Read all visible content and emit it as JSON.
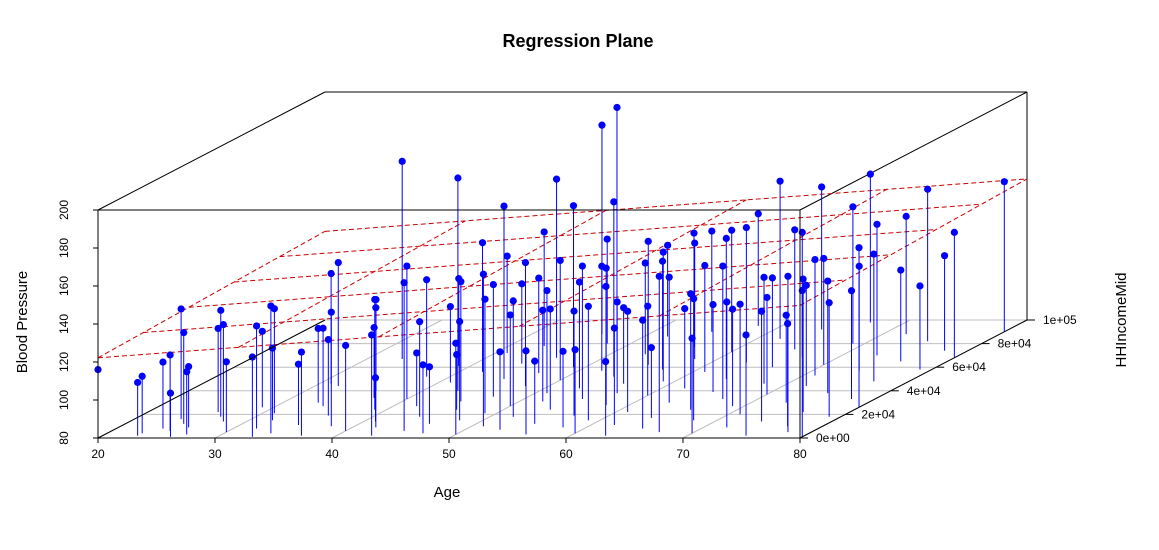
{
  "chart_data": {
    "type": "scatter",
    "variant": "3d-scatter-with-drop-lines-and-regression-plane",
    "title": "Regression Plane",
    "xlabel": "Age",
    "ylabel": "HHIncomeMid",
    "zlabel": "Blood Pressure",
    "xlim": [
      20,
      80
    ],
    "ylim": [
      0,
      100000
    ],
    "zlim": [
      80,
      200
    ],
    "x_ticks": [
      "20",
      "30",
      "40",
      "50",
      "60",
      "70",
      "80"
    ],
    "y_ticks": [
      "0e+00",
      "2e+04",
      "4e+04",
      "6e+04",
      "8e+04",
      "1e+05"
    ],
    "z_ticks": [
      "80",
      "100",
      "120",
      "140",
      "160",
      "180",
      "200"
    ],
    "x_tick_values": [
      20,
      30,
      40,
      50,
      60,
      70,
      80
    ],
    "y_tick_values": [
      0,
      20000,
      40000,
      60000,
      80000,
      100000
    ],
    "z_tick_values": [
      80,
      100,
      120,
      140,
      160,
      180,
      200
    ],
    "grid": "floor",
    "point_color": "#0000FF",
    "plane_color": "#CC0000",
    "box_color": "#000000",
    "grid_color": "#BEBEBE",
    "regression_plane": {
      "intercept": 113,
      "age_coef": 0.46,
      "income_coef": 4.45e-05
    },
    "points": [
      [
        20,
        0,
        116
      ],
      [
        23,
        2000,
        108
      ],
      [
        23,
        4000,
        110
      ],
      [
        24,
        8000,
        115
      ],
      [
        24,
        16000,
        138
      ],
      [
        25,
        6000,
        120
      ],
      [
        25,
        12000,
        128
      ],
      [
        26,
        1000,
        103
      ],
      [
        26,
        9000,
        112
      ],
      [
        26,
        22000,
        124
      ],
      [
        27,
        3000,
        113
      ],
      [
        27,
        18000,
        136
      ],
      [
        28,
        14000,
        131
      ],
      [
        29,
        26000,
        120
      ],
      [
        30,
        5000,
        117
      ],
      [
        31,
        21000,
        135
      ],
      [
        31,
        46000,
        138
      ],
      [
        32,
        8000,
        134
      ],
      [
        32,
        15000,
        118
      ],
      [
        32,
        44000,
        145
      ],
      [
        33,
        1000,
        122
      ],
      [
        33,
        30000,
        119
      ],
      [
        33,
        67000,
        184
      ],
      [
        34,
        4000,
        147
      ],
      [
        34,
        27000,
        121
      ],
      [
        35,
        11000,
        112
      ],
      [
        36,
        19000,
        120
      ],
      [
        36,
        40000,
        128
      ],
      [
        37,
        2000,
        124
      ],
      [
        37,
        34000,
        117
      ],
      [
        38,
        10000,
        140
      ],
      [
        38,
        52000,
        131
      ],
      [
        39,
        24000,
        138
      ],
      [
        39,
        61000,
        126
      ],
      [
        40,
        6000,
        125
      ],
      [
        40,
        33000,
        150
      ],
      [
        41,
        14000,
        103
      ],
      [
        41,
        47000,
        120
      ],
      [
        41,
        72000,
        131
      ],
      [
        42,
        9000,
        143
      ],
      [
        42,
        27000,
        108
      ],
      [
        42,
        56000,
        148
      ],
      [
        43,
        2000,
        133
      ],
      [
        43,
        40000,
        192
      ],
      [
        43,
        78000,
        140
      ],
      [
        44,
        18000,
        130
      ],
      [
        44,
        63000,
        122
      ],
      [
        45,
        6000,
        158
      ],
      [
        45,
        31000,
        143
      ],
      [
        45,
        50000,
        171
      ],
      [
        46,
        12000,
        110
      ],
      [
        46,
        24000,
        109
      ],
      [
        46,
        68000,
        174
      ],
      [
        46,
        88000,
        190
      ],
      [
        47,
        4000,
        116
      ],
      [
        47,
        35000,
        139
      ],
      [
        47,
        55000,
        130
      ],
      [
        48,
        15000,
        132
      ],
      [
        48,
        44000,
        145
      ],
      [
        48,
        80000,
        135
      ],
      [
        49,
        21000,
        140
      ],
      [
        49,
        60000,
        165
      ],
      [
        50,
        3000,
        128
      ],
      [
        50,
        27000,
        128
      ],
      [
        50,
        49000,
        143
      ],
      [
        50,
        74000,
        208
      ],
      [
        51,
        10000,
        160
      ],
      [
        51,
        38000,
        134
      ],
      [
        51,
        64000,
        120
      ],
      [
        52,
        18000,
        141
      ],
      [
        52,
        31000,
        128
      ],
      [
        52,
        57000,
        135
      ],
      [
        52,
        86000,
        128
      ],
      [
        53,
        7000,
        121
      ],
      [
        53,
        42000,
        136
      ],
      [
        53,
        71000,
        128
      ],
      [
        54,
        24000,
        133
      ],
      [
        54,
        52000,
        172
      ],
      [
        55,
        12000,
        113
      ],
      [
        55,
        33000,
        150
      ],
      [
        55,
        62000,
        145
      ],
      [
        55,
        90000,
        133
      ],
      [
        56,
        3000,
        124
      ],
      [
        56,
        46000,
        120
      ],
      [
        56,
        77000,
        140
      ],
      [
        57,
        19000,
        135
      ],
      [
        57,
        38000,
        128
      ],
      [
        57,
        58000,
        137
      ],
      [
        58,
        9000,
        120
      ],
      [
        58,
        28000,
        152
      ],
      [
        58,
        67000,
        141
      ],
      [
        58,
        95000,
        139
      ],
      [
        59,
        15000,
        140
      ],
      [
        59,
        48000,
        148
      ],
      [
        60,
        4000,
        124
      ],
      [
        60,
        36000,
        127
      ],
      [
        60,
        73000,
        144
      ],
      [
        61,
        22000,
        133
      ],
      [
        61,
        56000,
        136
      ],
      [
        62,
        11000,
        131
      ],
      [
        62,
        42000,
        122
      ],
      [
        62,
        84000,
        163
      ],
      [
        63,
        2000,
        119
      ],
      [
        63,
        30000,
        146
      ],
      [
        63,
        64000,
        151
      ],
      [
        64,
        17000,
        117
      ],
      [
        64,
        50000,
        154
      ],
      [
        64,
        92000,
        155
      ],
      [
        65,
        8000,
        137
      ],
      [
        65,
        39000,
        126
      ],
      [
        65,
        75000,
        143
      ],
      [
        66,
        24000,
        141
      ],
      [
        66,
        60000,
        127
      ],
      [
        67,
        5000,
        162
      ],
      [
        67,
        33000,
        150
      ],
      [
        67,
        68000,
        146
      ],
      [
        67,
        98000,
        158
      ],
      [
        68,
        15000,
        144
      ],
      [
        68,
        46000,
        136
      ],
      [
        69,
        27000,
        131
      ],
      [
        69,
        80000,
        152
      ],
      [
        70,
        4000,
        130
      ],
      [
        70,
        37000,
        131
      ],
      [
        70,
        62000,
        136
      ],
      [
        71,
        20000,
        138
      ],
      [
        71,
        53000,
        141
      ],
      [
        72,
        9000,
        146
      ],
      [
        72,
        44000,
        133
      ],
      [
        72,
        88000,
        142
      ],
      [
        73,
        30000,
        126
      ],
      [
        73,
        70000,
        149
      ],
      [
        74,
        14000,
        138
      ],
      [
        74,
        57000,
        135
      ],
      [
        75,
        2000,
        133
      ],
      [
        75,
        38000,
        139
      ],
      [
        75,
        82000,
        160
      ],
      [
        76,
        22000,
        150
      ],
      [
        76,
        65000,
        128
      ],
      [
        77,
        10000,
        134
      ],
      [
        77,
        48000,
        147
      ],
      [
        78,
        5000,
        162
      ],
      [
        78,
        33000,
        137
      ],
      [
        78,
        74000,
        130
      ],
      [
        79,
        18000,
        140
      ],
      [
        79,
        58000,
        124
      ],
      [
        80,
        1000,
        157
      ],
      [
        80,
        26000,
        164
      ],
      [
        80,
        90000,
        159
      ],
      [
        80,
        68000,
        146
      ]
    ]
  }
}
